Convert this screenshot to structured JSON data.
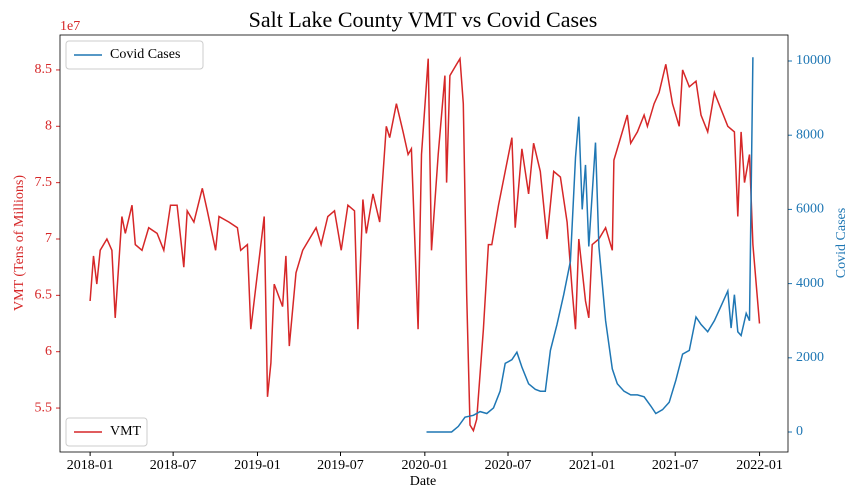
{
  "chart_data": {
    "type": "line",
    "title": "Salt Lake County VMT vs Covid Cases",
    "xlabel": "Date",
    "ylabel": "VMT (Tens of Millions)",
    "y2label": "Covid Cases",
    "y_offset_label": "1e7",
    "xlim": [
      2017.82,
      2022.17
    ],
    "xticks": [
      {
        "value": 2018.0,
        "label": "2018-01"
      },
      {
        "value": 2018.496,
        "label": "2018-07"
      },
      {
        "value": 2019.0,
        "label": "2019-01"
      },
      {
        "value": 2019.496,
        "label": "2019-07"
      },
      {
        "value": 2020.0,
        "label": "2020-01"
      },
      {
        "value": 2020.497,
        "label": "2020-07"
      },
      {
        "value": 2021.0,
        "label": "2021-01"
      },
      {
        "value": 2021.496,
        "label": "2021-07"
      },
      {
        "value": 2022.0,
        "label": "2022-01"
      }
    ],
    "ylim": [
      5.11,
      8.81
    ],
    "yticks": [
      5.5,
      6.0,
      6.5,
      7.0,
      7.5,
      8.0,
      8.5
    ],
    "y2lim": [
      -539,
      10701
    ],
    "y2ticks": [
      0,
      2000,
      4000,
      6000,
      8000,
      10000
    ],
    "series": [
      {
        "name": "VMT",
        "color": "#d62728",
        "legend": "lower left",
        "x": [
          2018.0,
          2018.02,
          2018.04,
          2018.06,
          2018.1,
          2018.13,
          2018.15,
          2018.19,
          2018.21,
          2018.25,
          2018.27,
          2018.31,
          2018.35,
          2018.4,
          2018.44,
          2018.48,
          2018.52,
          2018.56,
          2018.58,
          2018.62,
          2018.67,
          2018.7,
          2018.75,
          2018.77,
          2018.83,
          2018.88,
          2018.9,
          2018.94,
          2018.96,
          2019.0,
          2019.04,
          2019.06,
          2019.08,
          2019.1,
          2019.15,
          2019.17,
          2019.19,
          2019.23,
          2019.27,
          2019.31,
          2019.35,
          2019.38,
          2019.42,
          2019.46,
          2019.5,
          2019.54,
          2019.58,
          2019.6,
          2019.63,
          2019.65,
          2019.69,
          2019.73,
          2019.77,
          2019.79,
          2019.83,
          2019.87,
          2019.9,
          2019.92,
          2019.96,
          2019.98,
          2020.02,
          2020.04,
          2020.08,
          2020.12,
          2020.13,
          2020.15,
          2020.19,
          2020.21,
          2020.23,
          2020.25,
          2020.27,
          2020.29,
          2020.31,
          2020.35,
          2020.38,
          2020.4,
          2020.44,
          2020.48,
          2020.52,
          2020.54,
          2020.58,
          2020.62,
          2020.65,
          2020.69,
          2020.73,
          2020.77,
          2020.81,
          2020.85,
          2020.88,
          2020.9,
          2020.92,
          2020.96,
          2020.98,
          2021.0,
          2021.04,
          2021.08,
          2021.12,
          2021.13,
          2021.17,
          2021.21,
          2021.23,
          2021.27,
          2021.31,
          2021.33,
          2021.37,
          2021.4,
          2021.44,
          2021.48,
          2021.52,
          2021.54,
          2021.58,
          2021.62,
          2021.65,
          2021.69,
          2021.73,
          2021.77,
          2021.81,
          2021.85,
          2021.87,
          2021.89,
          2021.91,
          2021.94,
          2021.96,
          2022.0
        ],
        "values": [
          6.45,
          6.85,
          6.6,
          6.9,
          7.0,
          6.9,
          6.3,
          7.2,
          7.05,
          7.3,
          6.95,
          6.9,
          7.1,
          7.05,
          6.9,
          7.3,
          7.3,
          6.75,
          7.25,
          7.15,
          7.45,
          7.25,
          6.9,
          7.2,
          7.15,
          7.1,
          6.9,
          6.95,
          6.2,
          6.7,
          7.2,
          5.6,
          5.9,
          6.6,
          6.4,
          6.85,
          6.05,
          6.7,
          6.9,
          7.0,
          7.1,
          6.95,
          7.2,
          7.25,
          6.9,
          7.3,
          7.25,
          6.2,
          7.35,
          7.05,
          7.4,
          7.15,
          8.0,
          7.9,
          8.2,
          7.95,
          7.75,
          7.8,
          6.2,
          7.75,
          8.6,
          6.9,
          7.75,
          8.45,
          7.5,
          8.45,
          8.55,
          8.6,
          8.2,
          6.5,
          5.35,
          5.3,
          5.4,
          6.2,
          6.95,
          6.95,
          7.3,
          7.6,
          7.9,
          7.1,
          7.8,
          7.4,
          7.85,
          7.6,
          7.0,
          7.6,
          7.55,
          7.15,
          6.55,
          6.2,
          7.0,
          6.45,
          6.3,
          6.95,
          7.0,
          7.1,
          6.9,
          7.7,
          7.9,
          8.1,
          7.85,
          7.95,
          8.1,
          8.0,
          8.2,
          8.3,
          8.55,
          8.2,
          8.0,
          8.5,
          8.35,
          8.4,
          8.1,
          7.95,
          8.3,
          8.15,
          8.0,
          7.95,
          7.2,
          7.95,
          7.5,
          7.75,
          6.95,
          6.25
        ]
      },
      {
        "name": "Covid Cases",
        "color": "#1f77b4",
        "axis": "y2",
        "legend": "upper left",
        "x": [
          2020.01,
          2020.16,
          2020.2,
          2020.24,
          2020.29,
          2020.33,
          2020.37,
          2020.41,
          2020.45,
          2020.48,
          2020.52,
          2020.55,
          2020.58,
          2020.62,
          2020.66,
          2020.69,
          2020.72,
          2020.75,
          2020.79,
          2020.83,
          2020.87,
          2020.9,
          2020.92,
          2020.94,
          2020.96,
          2020.98,
          2021.02,
          2021.04,
          2021.08,
          2021.12,
          2021.15,
          2021.19,
          2021.23,
          2021.27,
          2021.31,
          2021.35,
          2021.38,
          2021.42,
          2021.46,
          2021.5,
          2021.54,
          2021.58,
          2021.62,
          2021.65,
          2021.69,
          2021.73,
          2021.77,
          2021.81,
          2021.83,
          2021.85,
          2021.87,
          2021.89,
          2021.92,
          2021.94,
          2021.96
        ],
        "values": [
          0,
          0,
          150,
          400,
          450,
          550,
          500,
          650,
          1100,
          1850,
          1950,
          2150,
          1750,
          1300,
          1150,
          1100,
          1100,
          2200,
          2900,
          3700,
          4600,
          7400,
          8500,
          6000,
          7200,
          5000,
          7800,
          5000,
          3000,
          1700,
          1300,
          1100,
          1000,
          1000,
          950,
          700,
          500,
          600,
          800,
          1400,
          2100,
          2200,
          3100,
          2900,
          2700,
          3000,
          3400,
          3800,
          2800,
          3700,
          2700,
          2600,
          3200,
          3000,
          10100
        ]
      }
    ]
  }
}
